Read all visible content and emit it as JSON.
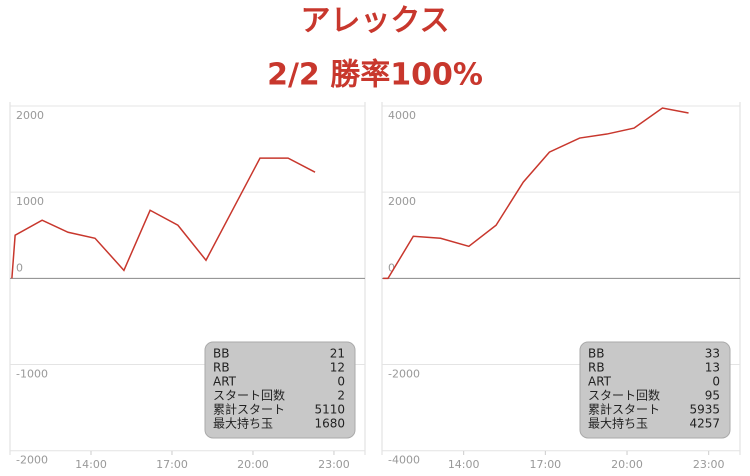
{
  "title": "アレックス",
  "subtitle": "2/2 勝率100%",
  "chart_data": [
    {
      "type": "line",
      "color": "#c8372d",
      "grid": true,
      "x": [
        11.07,
        11.19,
        12.19,
        13.15,
        14.15,
        15.22,
        16.19,
        17.22,
        18.26,
        20.26,
        21.3,
        22.3
      ],
      "values": [
        0,
        500,
        675,
        535,
        465,
        93,
        790,
        616,
        210,
        1395,
        1395,
        1232
      ],
      "xlim": [
        11,
        24.15
      ],
      "xticks": [
        {
          "value": 14,
          "label": "14:00"
        },
        {
          "value": 17,
          "label": "17:00"
        },
        {
          "value": 20,
          "label": "20:00"
        },
        {
          "value": 23,
          "label": "23:00"
        }
      ],
      "ylim": [
        -2050,
        2000
      ],
      "yticks": [
        -2000,
        -1000,
        0,
        1000,
        2000
      ],
      "stats": [
        {
          "label": "BB",
          "value": 21
        },
        {
          "label": "RB",
          "value": 12
        },
        {
          "label": "ART",
          "value": 0
        },
        {
          "label": "スタート回数",
          "value": 2
        },
        {
          "label": "累計スタート",
          "value": 5110
        },
        {
          "label": "最大持ち玉",
          "value": 1680
        }
      ]
    },
    {
      "type": "line",
      "color": "#c8372d",
      "grid": true,
      "x": [
        11.04,
        11.22,
        12.15,
        13.15,
        14.19,
        15.19,
        16.19,
        17.15,
        18.26,
        19.26,
        20.26,
        21.3,
        22.26
      ],
      "values": [
        0,
        0,
        977,
        930,
        744,
        1233,
        2233,
        2930,
        3256,
        3349,
        3488,
        3953,
        3837
      ],
      "xlim": [
        11,
        24.15
      ],
      "xticks": [
        {
          "value": 14,
          "label": "14:00"
        },
        {
          "value": 17,
          "label": "17:00"
        },
        {
          "value": 20,
          "label": "20:00"
        },
        {
          "value": 23,
          "label": "23:00"
        }
      ],
      "ylim": [
        -4100,
        4000
      ],
      "yticks": [
        -4000,
        -2000,
        0,
        2000,
        4000
      ],
      "stats": [
        {
          "label": "BB",
          "value": 33
        },
        {
          "label": "RB",
          "value": 13
        },
        {
          "label": "ART",
          "value": 0
        },
        {
          "label": "スタート回数",
          "value": 95
        },
        {
          "label": "累計スタート",
          "value": 5935
        },
        {
          "label": "最大持ち玉",
          "value": 4257
        }
      ]
    }
  ]
}
